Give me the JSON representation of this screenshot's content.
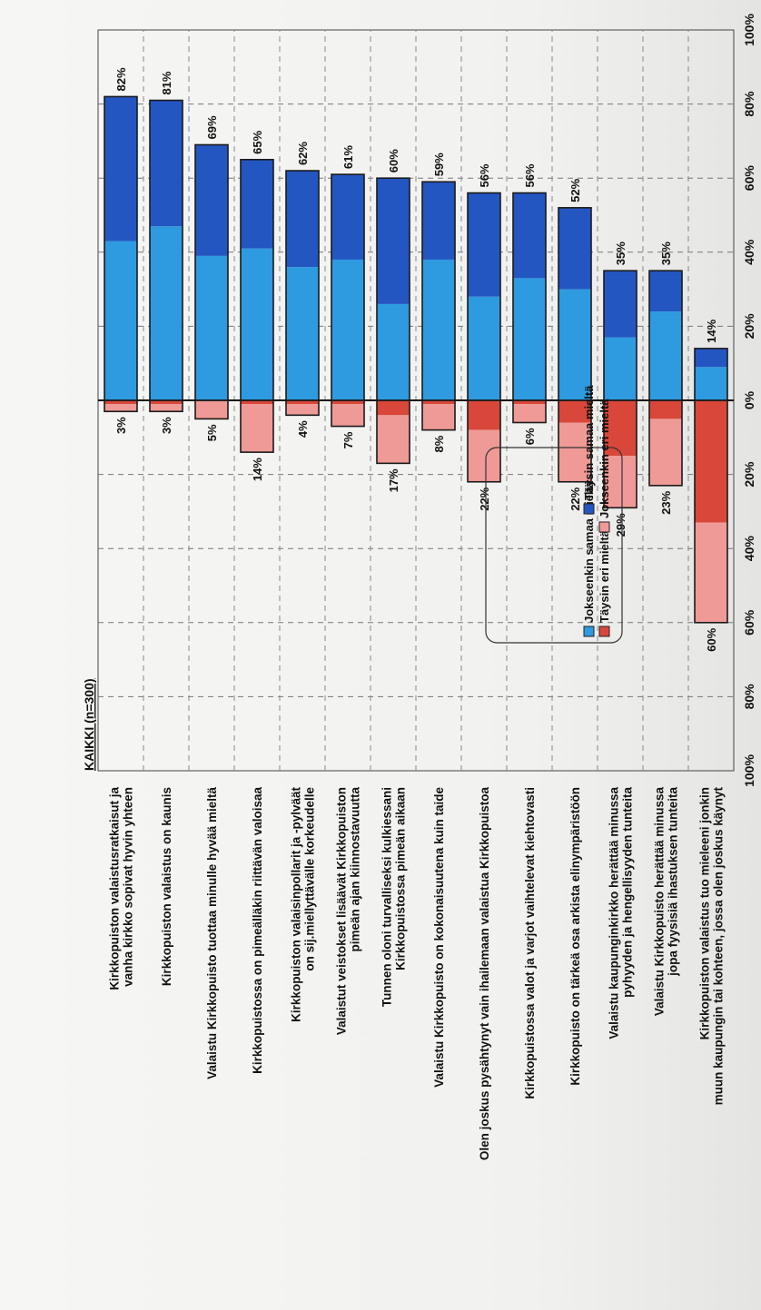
{
  "colors": {
    "disagree_full": "#d9473a",
    "disagree_some": "#ef9a96",
    "agree_some": "#2e9ae0",
    "agree_full": "#2456c2"
  },
  "chart_data": {
    "type": "bar",
    "orientation": "horizontal",
    "stacked": true,
    "diverging": true,
    "sample_label": "KAIKKI (n=300)",
    "xlim": [
      -100,
      100
    ],
    "x_ticks": [
      "100%",
      "80%",
      "60%",
      "40%",
      "20%",
      "0%",
      "20%",
      "40%",
      "60%",
      "80%",
      "100%"
    ],
    "grid": true,
    "legend_position": "top-right",
    "categories": [
      "Kirkkopuiston valaistusratkaisut ja\nvanha kirkko sopivat hyvin yhteen",
      "Kirkkopuiston valaistus on kaunis",
      "Valaistu Kirkkopuisto tuottaa minulle hyvää mieltä",
      "Kirkkopuistossa on pimeälläkin riittävän valoisaa",
      "Kirkkopuiston valaisinpollarit ja -pylväät\non sij.miellyttävälle korkeudelle",
      "Valaistut veistokset lisäävät Kirkkopuiston\npimeän ajan kiinnostavuutta",
      "Tunnen oloni turvalliseksi kulkiessani\nKirkkopuistossa pimeän aikaan",
      "Valaistu Kirkkopuisto on kokonaisuutena kuin taide",
      "Olen joskus pysähtynyt vain ihailemaan valaistua Kirkkopuistoa",
      "Kirkkopuistossa valot ja varjot vaihtelevat kiehtovasti",
      "Kirkkopuisto on tärkeä osa arkista elinympäristöön",
      "Valaistu kaupunginkirkko herättää minussa\npyhyyden ja hengellisyyden tunteita",
      "Valaistu Kirkkopuisto herättää minussa\njopa fyysisiä ihastuksen tunteita",
      "Kirkkopuiston valaistus tuo mieleeni jonkin\nmuun kaupungin tai kohteen, jossa olen joskus käynyt"
    ],
    "series": [
      {
        "name": "Täysin eri mieltä",
        "values": [
          1,
          1,
          0,
          1,
          1,
          1,
          4,
          1,
          8,
          1,
          6,
          15,
          5,
          33
        ]
      },
      {
        "name": "Jokseenkin eri mieltä",
        "values": [
          2,
          2,
          5,
          13,
          3,
          6,
          13,
          7,
          14,
          5,
          16,
          14,
          18,
          27
        ]
      },
      {
        "name": "Jokseenkin samaa mieltä",
        "values": [
          43,
          47,
          39,
          41,
          36,
          38,
          26,
          38,
          28,
          33,
          30,
          17,
          24,
          9
        ]
      },
      {
        "name": "Täysin samaa mieltä",
        "values": [
          39,
          34,
          30,
          24,
          26,
          23,
          34,
          21,
          28,
          23,
          22,
          18,
          11,
          5
        ]
      }
    ],
    "disagree_totals": [
      "3%",
      "3%",
      "5%",
      "14%",
      "4%",
      "7%",
      "17%",
      "8%",
      "22%",
      "6%",
      "22%",
      "29%",
      "23%",
      "60%"
    ],
    "agree_totals": [
      "82%",
      "81%",
      "69%",
      "65%",
      "62%",
      "61%",
      "60%",
      "59%",
      "56%",
      "56%",
      "52%",
      "35%",
      "35%",
      "14%"
    ]
  }
}
